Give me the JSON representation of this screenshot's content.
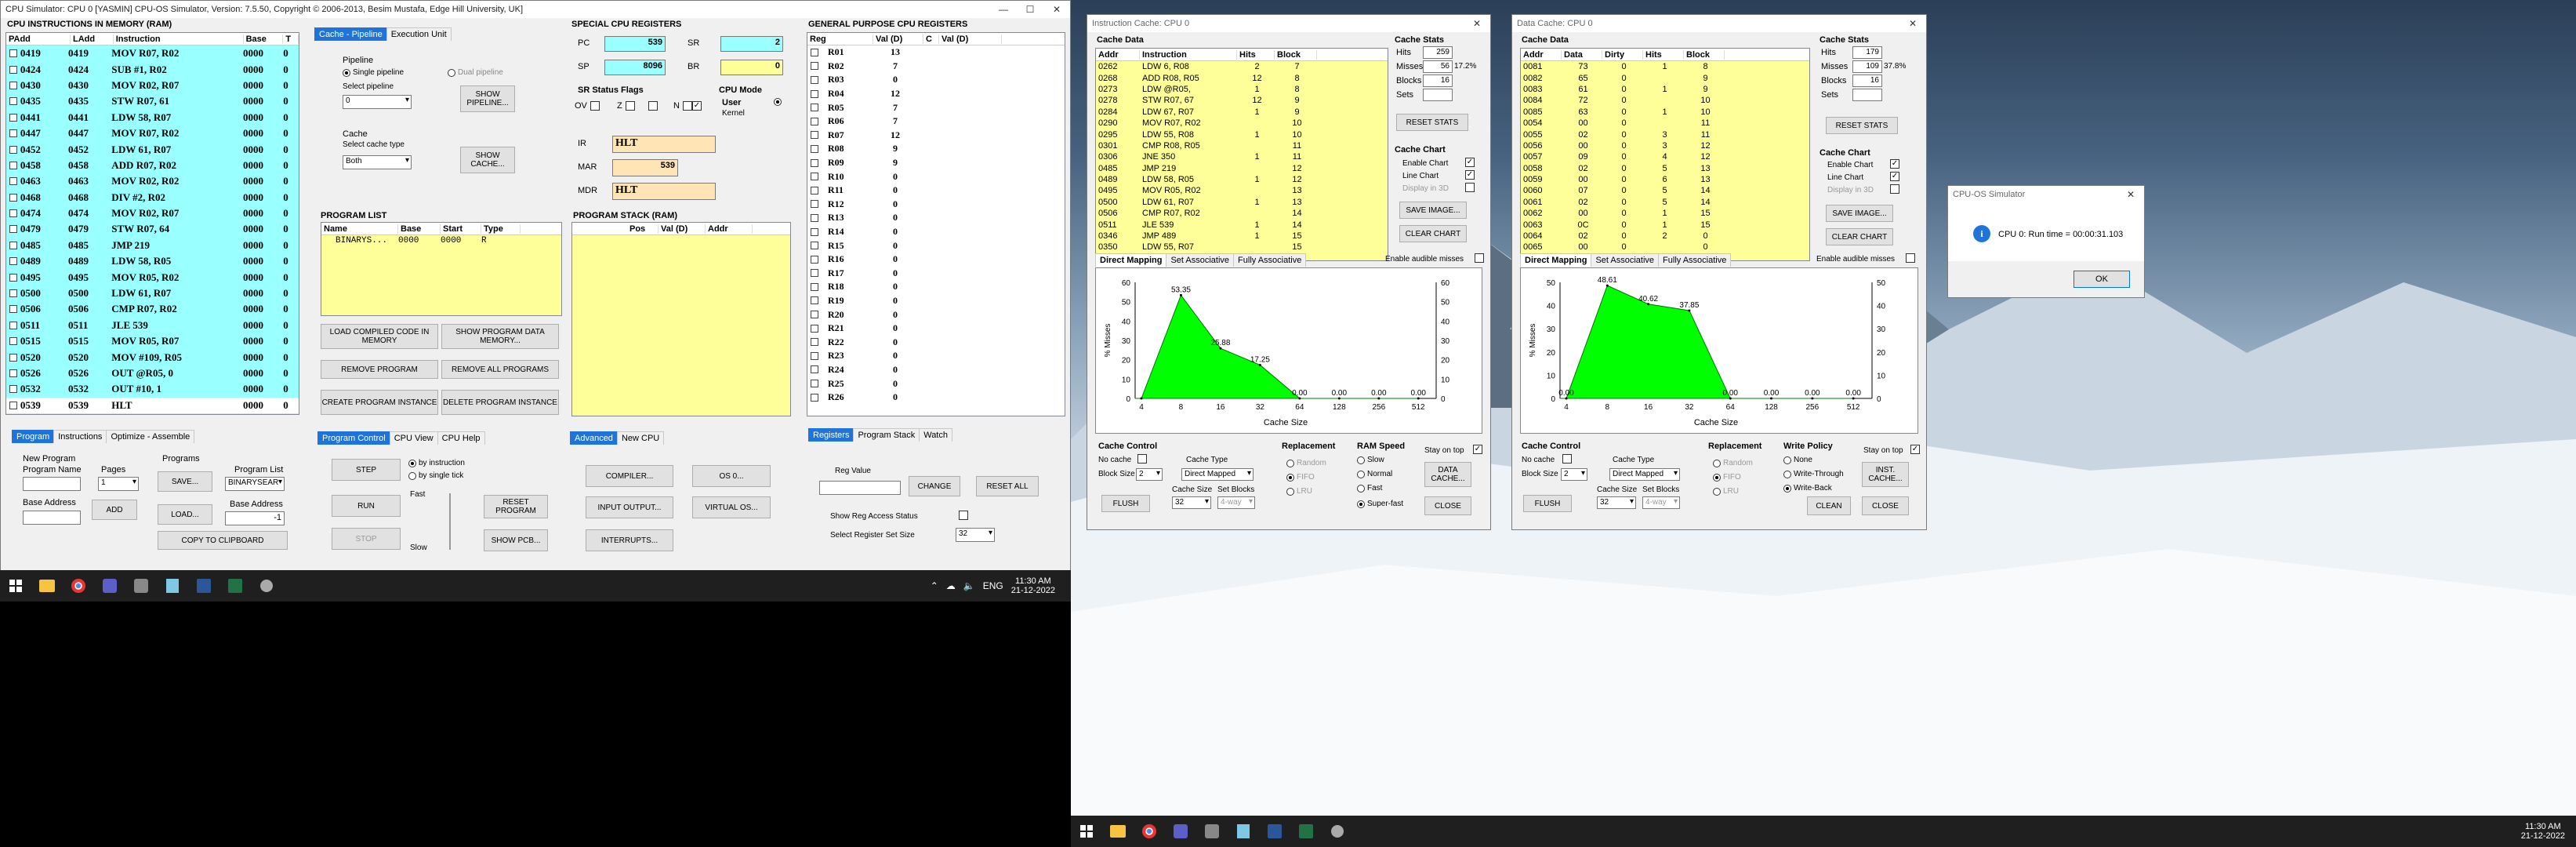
{
  "colors": {
    "cyan": "#99ffff",
    "yellow": "#ffff99",
    "green_fill": "#00ff00",
    "accent": "#1e74d8",
    "peach": "#ffe4b5"
  },
  "cpu": {
    "title": "CPU Simulator: CPU 0    [YASMIN]  CPU-OS Simulator,  Version: 7.5.50,  Copyright © 2006-2013, Besim Mustafa, Edge Hill University, UK]",
    "instr_header": "CPU INSTRUCTIONS IN MEMORY (RAM)",
    "instr_cols": [
      "PAdd",
      "LAdd",
      "Instruction",
      "Base",
      "T"
    ],
    "instructions": [
      [
        "0419",
        "0419",
        "MOV R07, R02",
        "0000",
        "0"
      ],
      [
        "0424",
        "0424",
        "SUB #1, R02",
        "0000",
        "0"
      ],
      [
        "0430",
        "0430",
        "MOV R02, R07",
        "0000",
        "0"
      ],
      [
        "0435",
        "0435",
        "STW R07, 61",
        "0000",
        "0"
      ],
      [
        "0441",
        "0441",
        "LDW 58, R07",
        "0000",
        "0"
      ],
      [
        "0447",
        "0447",
        "MOV R07, R02",
        "0000",
        "0"
      ],
      [
        "0452",
        "0452",
        "LDW 61, R07",
        "0000",
        "0"
      ],
      [
        "0458",
        "0458",
        "ADD R07, R02",
        "0000",
        "0"
      ],
      [
        "0463",
        "0463",
        "MOV R02, R02",
        "0000",
        "0"
      ],
      [
        "0468",
        "0468",
        "DIV #2, R02",
        "0000",
        "0"
      ],
      [
        "0474",
        "0474",
        "MOV R02, R07",
        "0000",
        "0"
      ],
      [
        "0479",
        "0479",
        "STW R07, 64",
        "0000",
        "0"
      ],
      [
        "0485",
        "0485",
        "JMP 219",
        "0000",
        "0"
      ],
      [
        "0489",
        "0489",
        "LDW 58, R05",
        "0000",
        "0"
      ],
      [
        "0495",
        "0495",
        "MOV R05, R02",
        "0000",
        "0"
      ],
      [
        "0500",
        "0500",
        "LDW 61, R07",
        "0000",
        "0"
      ],
      [
        "0506",
        "0506",
        "CMP R07, R02",
        "0000",
        "0"
      ],
      [
        "0511",
        "0511",
        "JLE 539",
        "0000",
        "0"
      ],
      [
        "0515",
        "0515",
        "MOV R05, R07",
        "0000",
        "0"
      ],
      [
        "0520",
        "0520",
        "MOV #109, R05",
        "0000",
        "0"
      ],
      [
        "0526",
        "0526",
        "OUT @R05, 0",
        "0000",
        "0"
      ],
      [
        "0532",
        "0532",
        "OUT #10, 1",
        "0000",
        "0"
      ],
      [
        "0539",
        "0539",
        "HLT",
        "0000",
        "0"
      ]
    ],
    "tabs_left": [
      "Program",
      "Instructions",
      "Optimize - Assemble"
    ],
    "new_program": "New Program",
    "program_name": "Program Name",
    "pages": "Pages",
    "pages_val": "1",
    "programs": "Programs",
    "save": "SAVE...",
    "load": "LOAD...",
    "program_list": "Program List",
    "prog_list_val": "BINARYSEAR",
    "base_address": "Base Address",
    "add": "ADD",
    "base_address2": "Base Address",
    "base_val": "-1",
    "copy": "COPY TO CLIPBOARD",
    "pipe_tabs": [
      "Cache - Pipeline",
      "Execution Unit"
    ],
    "pipeline": "Pipeline",
    "single_pipeline": "Single pipeline",
    "dual_pipeline": "Dual pipeline",
    "select_pipeline": "Select pipeline",
    "pipeline_val": "0",
    "show_pipeline": "SHOW PIPELINE...",
    "cache": "Cache",
    "select_cache_type": "Select cache type",
    "cache_type_val": "Both",
    "show_cache": "SHOW CACHE...",
    "spec_header": "SPECIAL CPU REGISTERS",
    "pc": "PC",
    "pc_val": "539",
    "sp": "SP",
    "sp_val": "8096",
    "sr": "SR",
    "sr_val": "2",
    "br": "BR",
    "br_val": "0",
    "sr_flags": "SR Status Flags",
    "ov": "OV",
    "z": "Z",
    "n": "N",
    "cpu_mode": "CPU Mode",
    "user": "User",
    "kernel": "Kernel",
    "ir": "IR",
    "ir_val": "HLT",
    "mar": "MAR",
    "mar_val": "539",
    "mdr": "MDR",
    "mdr_val": "HLT",
    "prog_list_header": "PROGRAM LIST",
    "prog_cols": [
      "Name",
      "Base",
      "Start",
      "Type"
    ],
    "prog_row": [
      "BINARYS...",
      "0000",
      "0000",
      "R"
    ],
    "stack_header": "PROGRAM STACK (RAM)",
    "stack_cols": [
      "Pos",
      "Val (D)",
      "Addr"
    ],
    "load_compiled": "LOAD COMPILED CODE IN MEMORY",
    "show_prog_data": "SHOW PROGRAM DATA MEMORY...",
    "remove_program": "REMOVE PROGRAM",
    "remove_all": "REMOVE ALL PROGRAMS",
    "create_instance": "CREATE PROGRAM INSTANCE",
    "delete_instance": "DELETE PROGRAM INSTANCE",
    "gp_header": "GENERAL PURPOSE CPU REGISTERS",
    "gp_cols": [
      "Reg",
      "Val (D)",
      "C",
      "Val (D)"
    ],
    "registers": [
      [
        "R01",
        "13"
      ],
      [
        "R02",
        "7"
      ],
      [
        "R03",
        "0"
      ],
      [
        "R04",
        "12"
      ],
      [
        "R05",
        "7"
      ],
      [
        "R06",
        "7"
      ],
      [
        "R07",
        "12"
      ],
      [
        "R08",
        "9"
      ],
      [
        "R09",
        "9"
      ],
      [
        "R10",
        "0"
      ],
      [
        "R11",
        "0"
      ],
      [
        "R12",
        "0"
      ],
      [
        "R13",
        "0"
      ],
      [
        "R14",
        "0"
      ],
      [
        "R15",
        "0"
      ],
      [
        "R16",
        "0"
      ],
      [
        "R17",
        "0"
      ],
      [
        "R18",
        "0"
      ],
      [
        "R19",
        "0"
      ],
      [
        "R20",
        "0"
      ],
      [
        "R21",
        "0"
      ],
      [
        "R22",
        "0"
      ],
      [
        "R23",
        "0"
      ],
      [
        "R24",
        "0"
      ],
      [
        "R25",
        "0"
      ],
      [
        "R26",
        "0"
      ]
    ],
    "ctl_tabs": [
      "Program Control",
      "CPU View",
      "CPU Help"
    ],
    "step": "STEP",
    "run": "RUN",
    "stop": "STOP",
    "by_instruction": "by instruction",
    "by_tick": "by single tick",
    "fast": "Fast",
    "slow": "Slow",
    "reset_program": "RESET PROGRAM",
    "show_pcb": "SHOW PCB...",
    "adv_tabs": [
      "Advanced",
      "New CPU"
    ],
    "compiler": "COMPILER...",
    "os": "OS 0...",
    "io": "INPUT OUTPUT...",
    "vos": "VIRTUAL OS...",
    "interrupts": "INTERRUPTS...",
    "reg_tabs": [
      "Registers",
      "Program Stack",
      "Watch"
    ],
    "reg_value": "Reg Value",
    "change": "CHANGE",
    "reset_all": "RESET ALL",
    "show_reg_access": "Show Reg Access Status",
    "select_reg_set": "Select Register Set Size",
    "reg_set_val": "32"
  },
  "icache": {
    "title": "Instruction Cache: CPU 0",
    "cache_data": "Cache Data",
    "cols": [
      "Addr",
      "Instruction",
      "Hits",
      "Block"
    ],
    "rows": [
      [
        "0262",
        "LDW 6, R08",
        "2",
        "7"
      ],
      [
        "0268",
        "ADD R08, R05",
        "12",
        "8"
      ],
      [
        "0273",
        "LDW @R05,",
        "1",
        "8"
      ],
      [
        "0278",
        "STW R07, 67",
        "12",
        "9"
      ],
      [
        "0284",
        "LDW 67, R07",
        "1",
        "9"
      ],
      [
        "0290",
        "MOV R07, R02",
        "",
        "10"
      ],
      [
        "0295",
        "LDW 55, R08",
        "1",
        "10"
      ],
      [
        "0301",
        "CMP R08, R05",
        "",
        "11"
      ],
      [
        "0306",
        "JNE 350",
        "1",
        "11"
      ],
      [
        "0485",
        "JMP 219",
        "",
        "12"
      ],
      [
        "0489",
        "LDW 58, R05",
        "1",
        "12"
      ],
      [
        "0495",
        "MOV R05, R02",
        "",
        "13"
      ],
      [
        "0500",
        "LDW 61, R07",
        "1",
        "13"
      ],
      [
        "0506",
        "CMP R07, R02",
        "",
        "14"
      ],
      [
        "0511",
        "JLE 539",
        "1",
        "14"
      ],
      [
        "0346",
        "JMP 489",
        "1",
        "15"
      ],
      [
        "0350",
        "LDW 55, R07",
        "",
        "15"
      ]
    ],
    "stats": "Cache Stats",
    "hits": "Hits",
    "hits_val": "259",
    "misses": "Misses",
    "misses_val": "56",
    "miss_pct": "17.2%",
    "blocks": "Blocks",
    "blocks_val": "16",
    "sets": "Sets",
    "sets_val": "",
    "reset_stats": "RESET STATS",
    "cache_chart": "Cache Chart",
    "enable_chart": "Enable Chart",
    "line_chart": "Line Chart",
    "display_3d": "Display in 3D",
    "save_image": "SAVE IMAGE...",
    "clear_chart": "CLEAR CHART",
    "tabs": [
      "Direct Mapping",
      "Set Associative",
      "Fully Associative"
    ],
    "audible": "Enable audible misses",
    "control": "Cache Control",
    "no_cache": "No cache",
    "block_size": "Block Size",
    "block_size_val": "2",
    "cache_type": "Cache Type",
    "cache_type_val": "Direct Mapped",
    "cache_size": "Cache Size",
    "cache_size_val": "32",
    "set_blocks": "Set Blocks",
    "set_blocks_val": "4-way",
    "replacement": "Replacement",
    "random": "Random",
    "fifo": "FIFO",
    "lru": "LRU",
    "ram_speed": "RAM Speed",
    "slow": "Slow",
    "normal": "Normal",
    "fast": "Fast",
    "superfast": "Super-fast",
    "stay_on_top": "Stay on top",
    "flush": "FLUSH",
    "data_cache": "DATA CACHE...",
    "close": "CLOSE"
  },
  "dcache": {
    "title": "Data Cache: CPU 0",
    "cache_data": "Cache Data",
    "cols": [
      "Addr",
      "Data",
      "Dirty",
      "Hits",
      "Block"
    ],
    "rows": [
      [
        "0081",
        "73",
        "0",
        "1",
        "8"
      ],
      [
        "0082",
        "65",
        "0",
        "",
        "9"
      ],
      [
        "0083",
        "61",
        "0",
        "1",
        "9"
      ],
      [
        "0084",
        "72",
        "0",
        "",
        "10"
      ],
      [
        "0085",
        "63",
        "0",
        "1",
        "10"
      ],
      [
        "0054",
        "00",
        "0",
        "",
        "11"
      ],
      [
        "0055",
        "02",
        "0",
        "3",
        "11"
      ],
      [
        "0056",
        "00",
        "0",
        "3",
        "12"
      ],
      [
        "0057",
        "09",
        "0",
        "4",
        "12"
      ],
      [
        "0058",
        "02",
        "0",
        "5",
        "13"
      ],
      [
        "0059",
        "00",
        "0",
        "6",
        "13"
      ],
      [
        "0060",
        "07",
        "0",
        "5",
        "14"
      ],
      [
        "0061",
        "02",
        "0",
        "5",
        "14"
      ],
      [
        "0062",
        "00",
        "0",
        "1",
        "15"
      ],
      [
        "0063",
        "0C",
        "0",
        "1",
        "15"
      ],
      [
        "0064",
        "02",
        "0",
        "2",
        "0"
      ],
      [
        "0065",
        "00",
        "0",
        "",
        "0"
      ]
    ],
    "stats": "Cache Stats",
    "hits": "Hits",
    "hits_val": "179",
    "misses": "Misses",
    "misses_val": "109",
    "miss_pct": "37.8%",
    "blocks": "Blocks",
    "blocks_val": "16",
    "sets": "Sets",
    "sets_val": "",
    "reset_stats": "RESET STATS",
    "cache_chart": "Cache Chart",
    "enable_chart": "Enable Chart",
    "line_chart": "Line Chart",
    "display_3d": "Display in 3D",
    "save_image": "SAVE IMAGE...",
    "clear_chart": "CLEAR CHART",
    "tabs": [
      "Direct Mapping",
      "Set Associative",
      "Fully Associative"
    ],
    "audible": "Enable audible misses",
    "control": "Cache Control",
    "no_cache": "No cache",
    "block_size": "Block Size",
    "block_size_val": "2",
    "cache_type": "Cache Type",
    "cache_type_val": "Direct Mapped",
    "cache_size": "Cache Size",
    "cache_size_val": "32",
    "set_blocks": "Set Blocks",
    "set_blocks_val": "4-way",
    "replacement": "Replacement",
    "random": "Random",
    "fifo": "FIFO",
    "lru": "LRU",
    "write_policy": "Write Policy",
    "none": "None",
    "write_through": "Write-Through",
    "write_back": "Write-Back",
    "stay_on_top": "Stay on top",
    "flush": "FLUSH",
    "inst_cache": "INST. CACHE...",
    "clean": "CLEAN",
    "close": "CLOSE"
  },
  "chart_data": [
    {
      "type": "area",
      "title": "",
      "xlabel": "Cache Size",
      "ylabel": "% Misses",
      "categories": [
        "4",
        "8",
        "16",
        "32",
        "64",
        "128",
        "256",
        "512"
      ],
      "values": [
        0,
        53.35,
        25.88,
        17.25,
        0,
        0,
        0,
        0
      ],
      "labels": [
        "",
        "53.35",
        "25.88",
        "17.25",
        "0.00",
        "0.00",
        "0.00",
        "0.00"
      ],
      "ylim": [
        0,
        60
      ],
      "yticks": [
        "0",
        "10",
        "20",
        "30",
        "40",
        "50",
        "60"
      ],
      "fill": "#00ff00"
    },
    {
      "type": "area",
      "title": "",
      "xlabel": "Cache Size",
      "ylabel": "% Misses",
      "categories": [
        "4",
        "8",
        "16",
        "32",
        "64",
        "128",
        "256",
        "512"
      ],
      "values": [
        0,
        48.61,
        40.62,
        37.85,
        0,
        0,
        0,
        0
      ],
      "labels": [
        "0.00",
        "48.61",
        "40.62",
        "37.85",
        "0.00",
        "0.00",
        "0.00",
        "0.00"
      ],
      "ylim": [
        0,
        50
      ],
      "yticks": [
        "0",
        "10",
        "20",
        "30",
        "40",
        "50"
      ],
      "fill": "#00ff00"
    }
  ],
  "dialog": {
    "title": "CPU-OS Simulator",
    "message": "CPU 0: Run time = 00:00:31.103",
    "ok": "OK"
  },
  "taskbar": {
    "lang": "ENG",
    "time": "11:30 AM",
    "date": "21-12-2022",
    "time2": "11:30 AM",
    "date2": "21-12-2022"
  }
}
